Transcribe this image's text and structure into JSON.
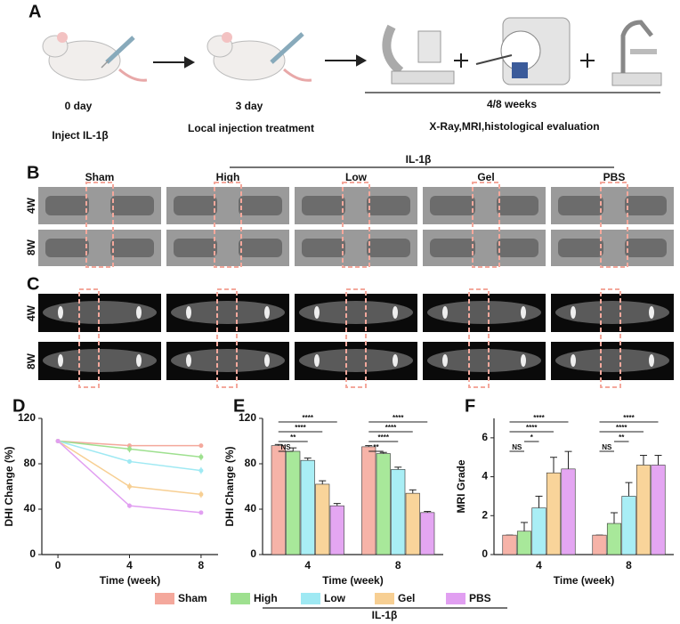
{
  "panel_labels": [
    "A",
    "B",
    "C",
    "D",
    "E",
    "F"
  ],
  "schematic": {
    "steps": [
      {
        "day": "0 day",
        "text": "Inject IL-1β"
      },
      {
        "day": "3 day",
        "text": "Local injection treatment"
      },
      {
        "day": "4/8 weeks",
        "text": "X-Ray,MRI,histological evaluation"
      }
    ]
  },
  "xray": {
    "group_label": "IL-1β",
    "columns": [
      "Sham",
      "High",
      "Low",
      "Gel",
      "PBS"
    ],
    "rows": [
      "4W",
      "8W"
    ]
  },
  "mri": {
    "rows": [
      "4W",
      "8W"
    ]
  },
  "legend": {
    "group_label": "IL-1β"
  },
  "chart_data": [
    {
      "type": "line",
      "x_label": "Time (week)",
      "y_label": "DHI Change (%)",
      "x": [
        0,
        4,
        8
      ],
      "xlim": [
        -0.9,
        8.95
      ],
      "xticks": [
        0,
        4,
        8
      ],
      "ylim": [
        0,
        120
      ],
      "yticks": [
        0,
        40,
        80,
        120
      ],
      "series": [
        {
          "name": "Sham",
          "color": "#f4a89c",
          "values": [
            100,
            96,
            96
          ],
          "errors": [
            0.5,
            1,
            1
          ]
        },
        {
          "name": "High",
          "color": "#9ee08f",
          "values": [
            100,
            93,
            86
          ],
          "errors": [
            0.5,
            3,
            3
          ]
        },
        {
          "name": "Low",
          "color": "#9fe9f3",
          "values": [
            100,
            82,
            74
          ],
          "errors": [
            0.5,
            2,
            3
          ]
        },
        {
          "name": "Gel",
          "color": "#f7cf93",
          "values": [
            100,
            60,
            53
          ],
          "errors": [
            0.5,
            3,
            3
          ]
        },
        {
          "name": "PBS",
          "color": "#e19ff1",
          "values": [
            100,
            43,
            37
          ],
          "errors": [
            0.5,
            2,
            1
          ]
        }
      ]
    },
    {
      "type": "bar",
      "x_label": "Time (week)",
      "y_label": "DHI Change (%)",
      "categories": [
        "4",
        "8"
      ],
      "ylim": [
        0,
        120
      ],
      "yticks": [
        0,
        40,
        80,
        120
      ],
      "series": [
        {
          "color": "#f6b3a8",
          "values": [
            96,
            95
          ],
          "errors": [
            1,
            1
          ]
        },
        {
          "color": "#a8e89a",
          "values": [
            91,
            89
          ],
          "errors": [
            3,
            1
          ]
        },
        {
          "color": "#a9eef5",
          "values": [
            83,
            75
          ],
          "errors": [
            2,
            2
          ]
        },
        {
          "color": "#f9d49a",
          "values": [
            62,
            54
          ],
          "errors": [
            3,
            3
          ]
        },
        {
          "color": "#e4a6f2",
          "values": [
            43,
            37
          ],
          "errors": [
            2,
            1
          ]
        }
      ],
      "annotations": [
        {
          "category": 0,
          "from": 0,
          "to": 1,
          "label": "NS"
        },
        {
          "category": 0,
          "from": 0,
          "to": 2,
          "label": "**"
        },
        {
          "category": 0,
          "from": 0,
          "to": 3,
          "label": "****"
        },
        {
          "category": 0,
          "from": 0,
          "to": 4,
          "label": "****"
        },
        {
          "category": 1,
          "from": 0,
          "to": 1,
          "label": "**"
        },
        {
          "category": 1,
          "from": 0,
          "to": 2,
          "label": "****"
        },
        {
          "category": 1,
          "from": 0,
          "to": 3,
          "label": "****"
        },
        {
          "category": 1,
          "from": 0,
          "to": 4,
          "label": "****"
        }
      ]
    },
    {
      "type": "bar",
      "x_label": "Time (week)",
      "y_label": "MRI Grade",
      "categories": [
        "4",
        "8"
      ],
      "ylim": [
        0,
        7
      ],
      "yticks": [
        0,
        2,
        4,
        6
      ],
      "series": [
        {
          "color": "#f6b3a8",
          "values": [
            1,
            1
          ],
          "errors": [
            0,
            0
          ]
        },
        {
          "color": "#a8e89a",
          "values": [
            1.2,
            1.6
          ],
          "errors": [
            0.45,
            0.55
          ]
        },
        {
          "color": "#a9eef5",
          "values": [
            2.4,
            3.0
          ],
          "errors": [
            0.6,
            0.7
          ]
        },
        {
          "color": "#f9d49a",
          "values": [
            4.2,
            4.6
          ],
          "errors": [
            0.8,
            0.5
          ]
        },
        {
          "color": "#e4a6f2",
          "values": [
            4.4,
            4.6
          ],
          "errors": [
            0.9,
            0.5
          ]
        }
      ],
      "annotations": [
        {
          "category": 0,
          "from": 0,
          "to": 1,
          "label": "NS"
        },
        {
          "category": 0,
          "from": 1,
          "to": 2,
          "label": "*"
        },
        {
          "category": 0,
          "from": 0,
          "to": 3,
          "label": "****"
        },
        {
          "category": 0,
          "from": 0,
          "to": 4,
          "label": "****"
        },
        {
          "category": 1,
          "from": 0,
          "to": 1,
          "label": "NS"
        },
        {
          "category": 1,
          "from": 1,
          "to": 2,
          "label": "**"
        },
        {
          "category": 1,
          "from": 0,
          "to": 3,
          "label": "****"
        },
        {
          "category": 1,
          "from": 0,
          "to": 4,
          "label": "****"
        }
      ]
    }
  ]
}
